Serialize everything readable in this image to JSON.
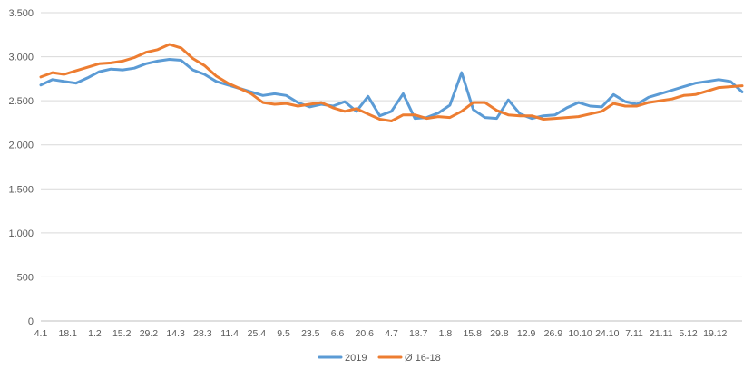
{
  "chart_data": {
    "type": "line",
    "title": "",
    "xlabel": "",
    "ylabel": "",
    "ylim": [
      0,
      3500
    ],
    "yticks": [
      0,
      500,
      1000,
      1500,
      2000,
      2500,
      3000,
      3500
    ],
    "ytick_labels": [
      "0",
      "500",
      "1.000",
      "1.500",
      "2.000",
      "2.500",
      "3.000",
      "3.500"
    ],
    "x_tick_labels": [
      "4.1",
      "18.1",
      "1.2",
      "15.2",
      "29.2",
      "14.3",
      "28.3",
      "11.4",
      "25.4",
      "9.5",
      "23.5",
      "6.6",
      "20.6",
      "4.7",
      "18.7",
      "1.8",
      "15.8",
      "29.8",
      "12.9",
      "26.9",
      "10.10",
      "24.10",
      "7.11",
      "21.11",
      "5.12",
      "19.12"
    ],
    "grid": true,
    "legend_position": "bottom",
    "series": [
      {
        "name": "2019",
        "color": "#5b9bd5",
        "values": [
          2680,
          2740,
          2720,
          2700,
          2760,
          2830,
          2860,
          2850,
          2870,
          2920,
          2950,
          2970,
          2960,
          2850,
          2800,
          2720,
          2680,
          2640,
          2600,
          2560,
          2580,
          2560,
          2480,
          2430,
          2460,
          2440,
          2490,
          2380,
          2550,
          2330,
          2380,
          2580,
          2300,
          2310,
          2360,
          2450,
          2820,
          2400,
          2310,
          2300,
          2510,
          2350,
          2300,
          2330,
          2340,
          2420,
          2480,
          2440,
          2430,
          2570,
          2490,
          2460,
          2540,
          2580,
          2620,
          2660,
          2700,
          2720,
          2740,
          2720,
          2600
        ]
      },
      {
        "name": "Ø 16-18",
        "color": "#ed7d31",
        "values": [
          2770,
          2820,
          2800,
          2840,
          2880,
          2920,
          2930,
          2950,
          2990,
          3050,
          3080,
          3140,
          3100,
          2980,
          2900,
          2780,
          2700,
          2640,
          2580,
          2480,
          2460,
          2470,
          2440,
          2460,
          2480,
          2420,
          2380,
          2410,
          2350,
          2290,
          2270,
          2340,
          2340,
          2300,
          2320,
          2310,
          2380,
          2480,
          2480,
          2390,
          2340,
          2330,
          2330,
          2290,
          2300,
          2310,
          2320,
          2350,
          2380,
          2470,
          2440,
          2440,
          2480,
          2500,
          2520,
          2560,
          2570,
          2610,
          2650,
          2660,
          2670
        ]
      }
    ]
  }
}
